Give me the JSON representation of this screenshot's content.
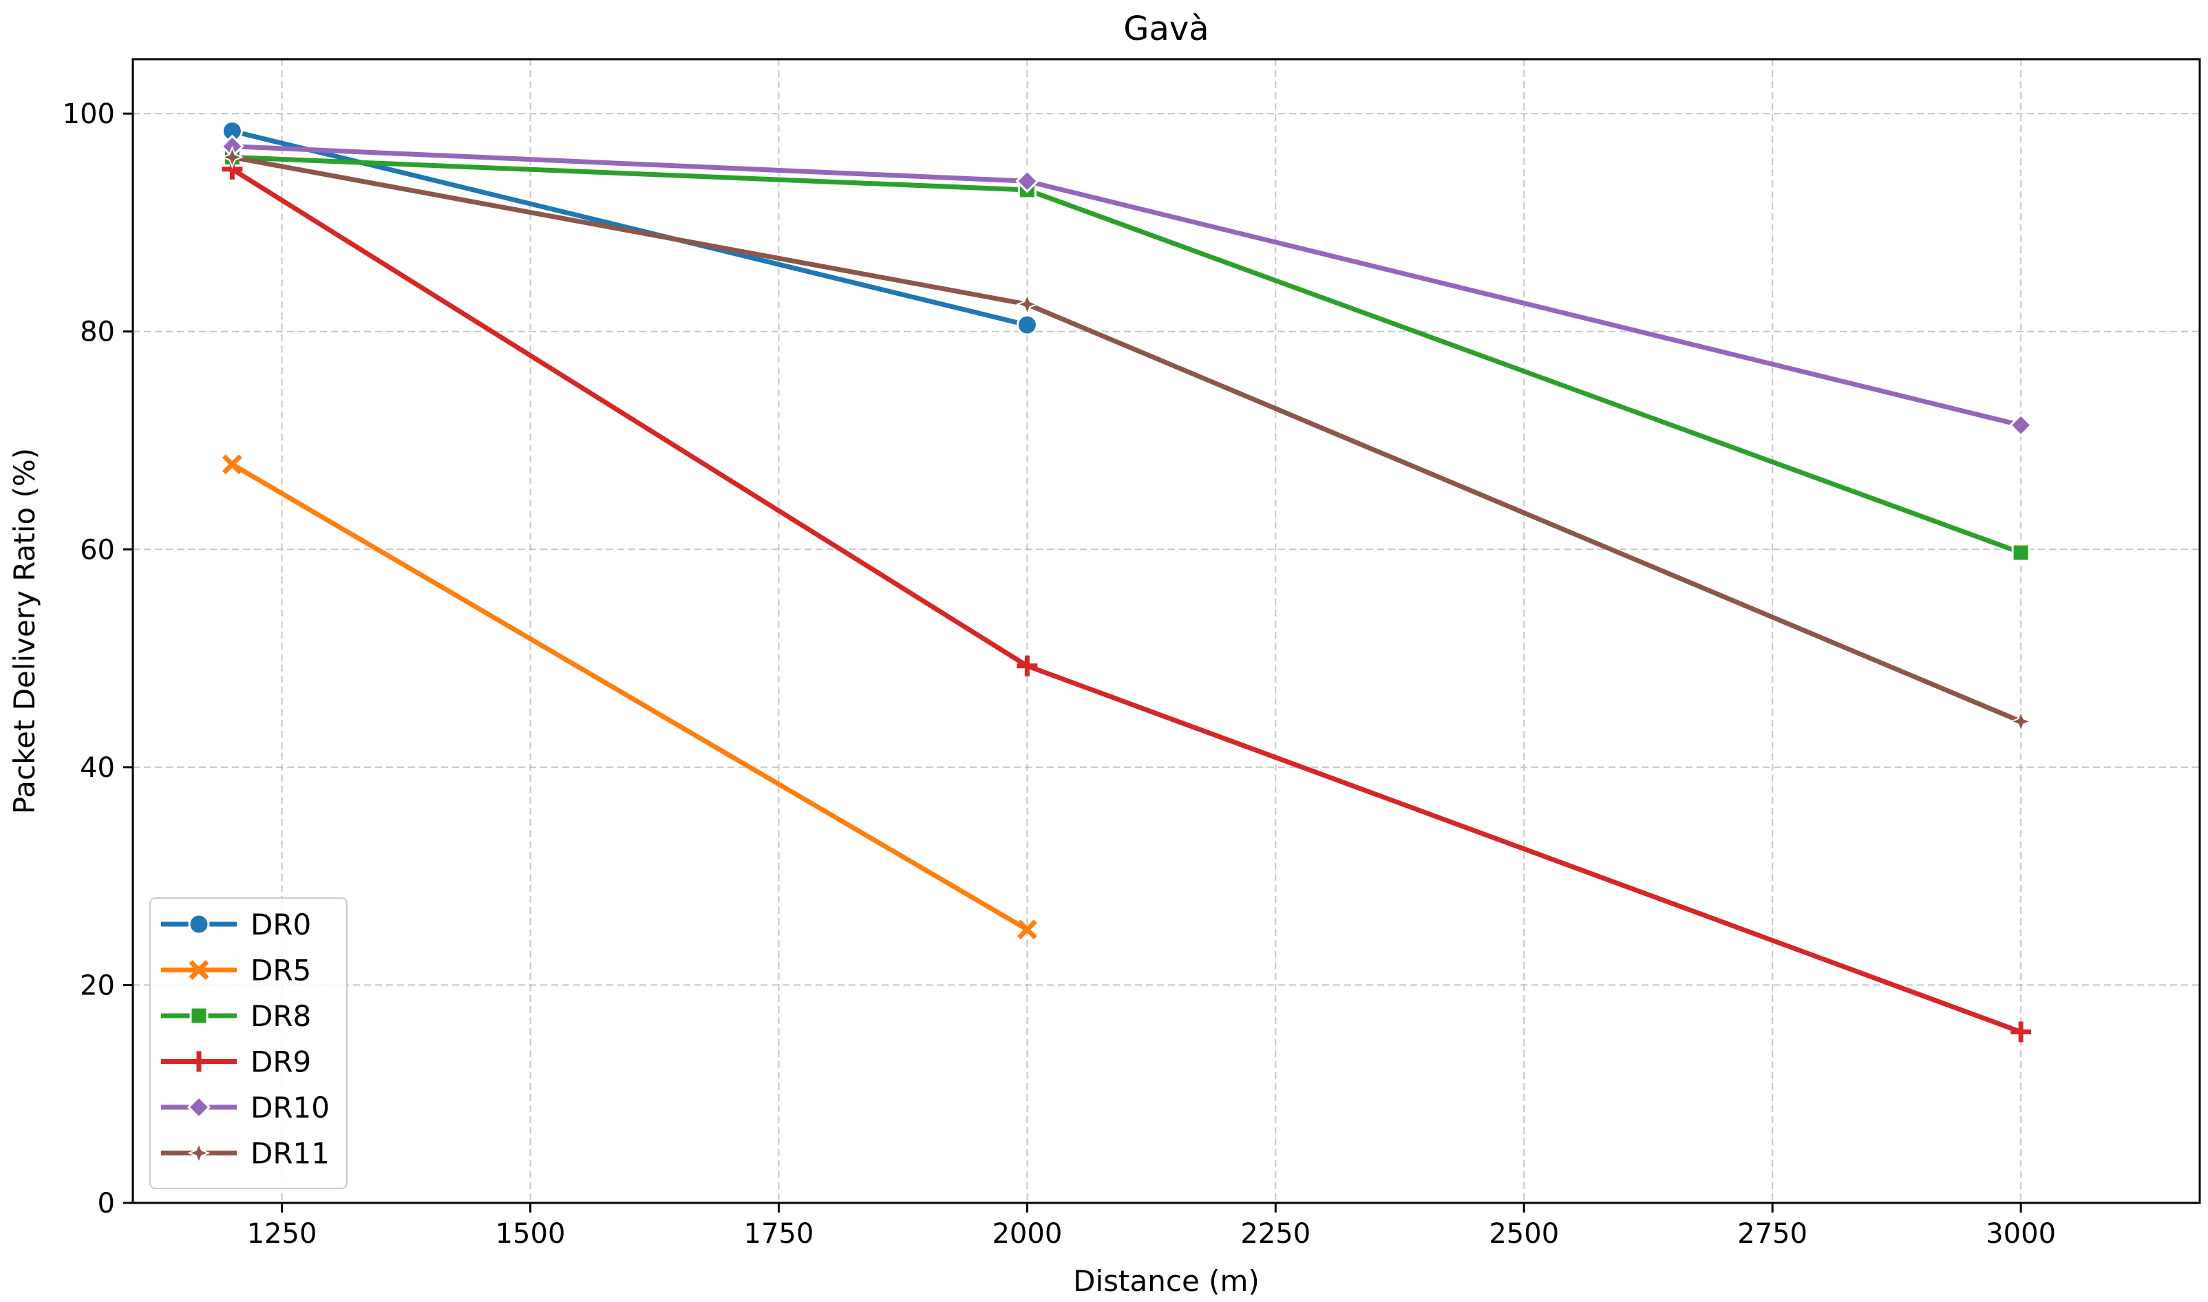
{
  "chart_data": {
    "type": "line",
    "title": "Gavà",
    "xlabel": "Distance (m)",
    "ylabel": "Packet Delivery Ratio (%)",
    "xlim": [
      1100,
      3180
    ],
    "ylim": [
      0,
      105
    ],
    "xticks": [
      1250,
      1500,
      1750,
      2000,
      2250,
      2500,
      2750,
      3000
    ],
    "yticks": [
      0,
      20,
      40,
      60,
      80,
      100
    ],
    "grid": true,
    "legend_position": "lower-left",
    "series": [
      {
        "name": "DR0",
        "color": "#1f77b4",
        "marker": "circle",
        "x": [
          1200,
          2000
        ],
        "y": [
          98.4,
          80.6
        ]
      },
      {
        "name": "DR5",
        "color": "#ff7f0e",
        "marker": "x",
        "x": [
          1200,
          2000
        ],
        "y": [
          67.8,
          25.1
        ]
      },
      {
        "name": "DR8",
        "color": "#2ca02c",
        "marker": "square",
        "x": [
          1200,
          2000,
          3000
        ],
        "y": [
          96.0,
          93.0,
          59.7
        ]
      },
      {
        "name": "DR9",
        "color": "#d62728",
        "marker": "plus",
        "x": [
          1200,
          2000,
          3000
        ],
        "y": [
          94.9,
          49.3,
          15.7
        ]
      },
      {
        "name": "DR10",
        "color": "#9467bd",
        "marker": "diamond",
        "x": [
          1200,
          2000,
          3000
        ],
        "y": [
          97.0,
          93.8,
          71.4
        ]
      },
      {
        "name": "DR11",
        "color": "#8c564b",
        "marker": "star",
        "x": [
          1200,
          2000,
          3000
        ],
        "y": [
          96.0,
          82.5,
          44.2
        ]
      }
    ]
  }
}
